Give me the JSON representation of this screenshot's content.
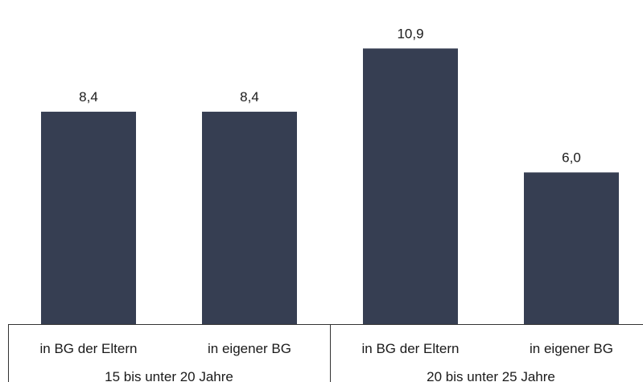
{
  "chart_data": {
    "type": "bar",
    "categories": [
      "in BG der Eltern",
      "in eigener BG",
      "in BG der Eltern",
      "in eigener BG"
    ],
    "values": [
      8.4,
      8.4,
      10.9,
      6.0
    ],
    "value_labels": [
      "8,4",
      "8,4",
      "10,9",
      "6,0"
    ],
    "groups": [
      {
        "label": "15 bis unter 20 Jahre",
        "categories": [
          0,
          1
        ]
      },
      {
        "label": "20 bis unter 25 Jahre",
        "categories": [
          2,
          3
        ]
      }
    ],
    "bar_color": "#363e52",
    "ylim": [
      0,
      12.5
    ],
    "grid": false,
    "legend": "none"
  }
}
